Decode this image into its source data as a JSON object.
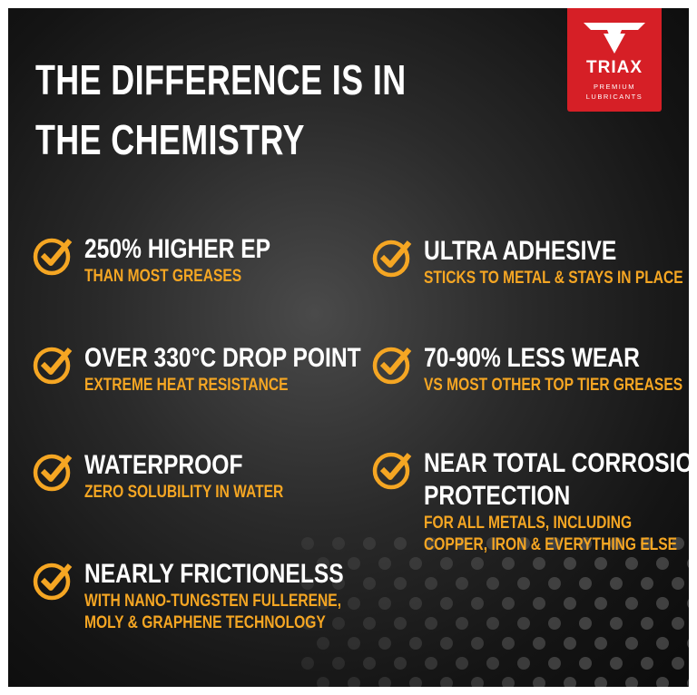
{
  "headline": [
    "THE DIFFERENCE IS IN",
    "THE CHEMISTRY"
  ],
  "logo": {
    "brand": "TRIAX",
    "tagline": [
      "PREMIUM",
      "LUBRICANTS"
    ]
  },
  "features": [
    {
      "title": [
        "250% HIGHER EP"
      ],
      "detail": [
        "THAN MOST GREASES"
      ]
    },
    {
      "title": [
        "ULTRA ADHESIVE"
      ],
      "detail": [
        "STICKS TO METAL & STAYS IN PLACE"
      ]
    },
    {
      "title": [
        "OVER 330°C DROP POINT"
      ],
      "detail": [
        "EXTREME HEAT RESISTANCE"
      ]
    },
    {
      "title": [
        "70-90% LESS WEAR"
      ],
      "detail": [
        "VS MOST OTHER TOP TIER GREASES"
      ]
    },
    {
      "title": [
        "WATERPROOF"
      ],
      "detail": [
        "ZERO SOLUBILITY IN WATER"
      ]
    },
    {
      "title": [
        "NEAR TOTAL CORROSION",
        "PROTECTION"
      ],
      "detail": [
        "FOR ALL METALS, INCLUDING",
        "COPPER, IRON & EVERYTHING ELSE"
      ]
    },
    {
      "title": [
        "NEARLY FRICTIONELSS"
      ],
      "detail": [
        "WITH NANO-TUNGSTEN FULLERENE,",
        "MOLY & GRAPHENE TECHNOLOGY"
      ]
    }
  ]
}
